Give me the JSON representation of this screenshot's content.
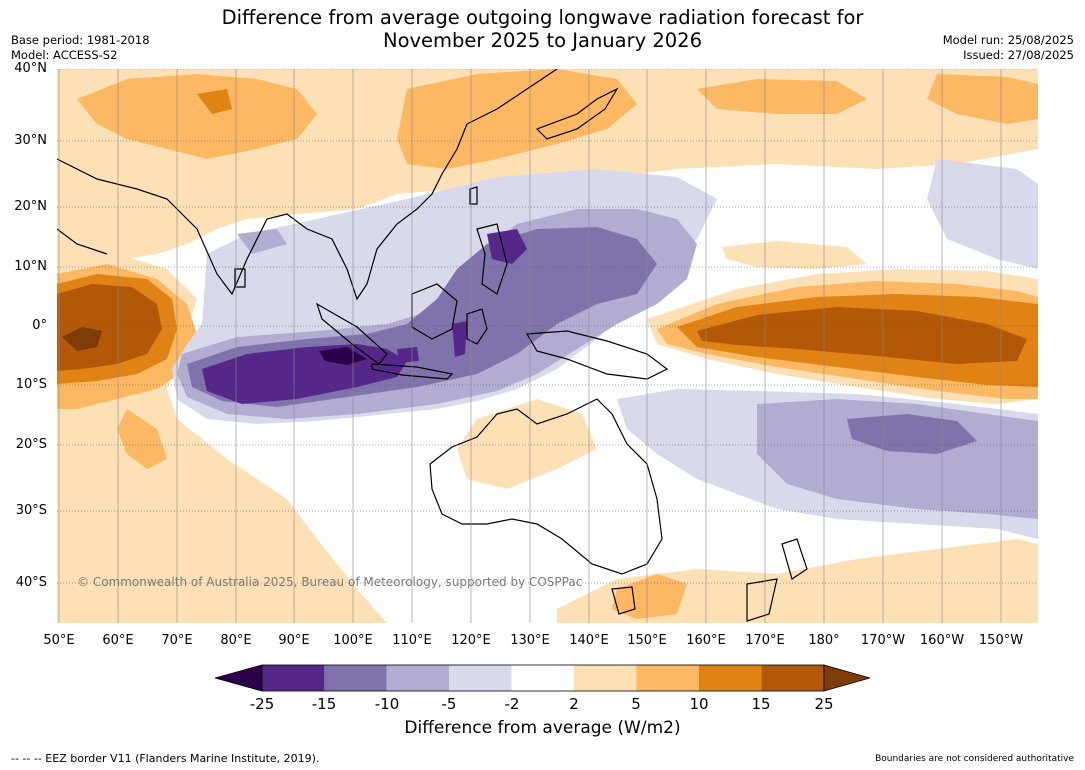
{
  "title_line1": "Difference from average outgoing longwave radiation forecast for",
  "title_line2": "November 2025 to January 2026",
  "base_period": "Base period: 1981-2018",
  "model": "Model: ACCESS-S2",
  "model_run": "Model run: 25/08/2025",
  "issued": "Issued: 27/08/2025",
  "copyright": "© Commonwealth of Australia 2025, Bureau of Meteorology, supported by COSPPac",
  "lat_labels": [
    "40°N",
    "30°N",
    "20°N",
    "10°N",
    "0°",
    "10°S",
    "20°S",
    "30°S",
    "40°S"
  ],
  "lon_labels": [
    "50°E",
    "60°E",
    "70°E",
    "80°E",
    "90°E",
    "100°E",
    "110°E",
    "120°E",
    "130°E",
    "140°E",
    "150°E",
    "160°E",
    "170°E",
    "180°",
    "170°W",
    "160°W",
    "150°W"
  ],
  "colorbar": {
    "title": "Difference from average (W/m2)",
    "ticks": [
      "-25",
      "-15",
      "-10",
      "-5",
      "-2",
      "2",
      "5",
      "10",
      "15",
      "25"
    ],
    "colors": [
      "#2d004b",
      "#542788",
      "#8073ac",
      "#b2abd2",
      "#d8daeb",
      "#ffffff",
      "#fee0b6",
      "#fdb863",
      "#e08214",
      "#b35806",
      "#7f3b08"
    ]
  },
  "footer_left": "--  --  -- EEZ border V11 (Flanders Marine Institute, 2019).",
  "footer_right": "Boundaries are not considered authoritative"
}
